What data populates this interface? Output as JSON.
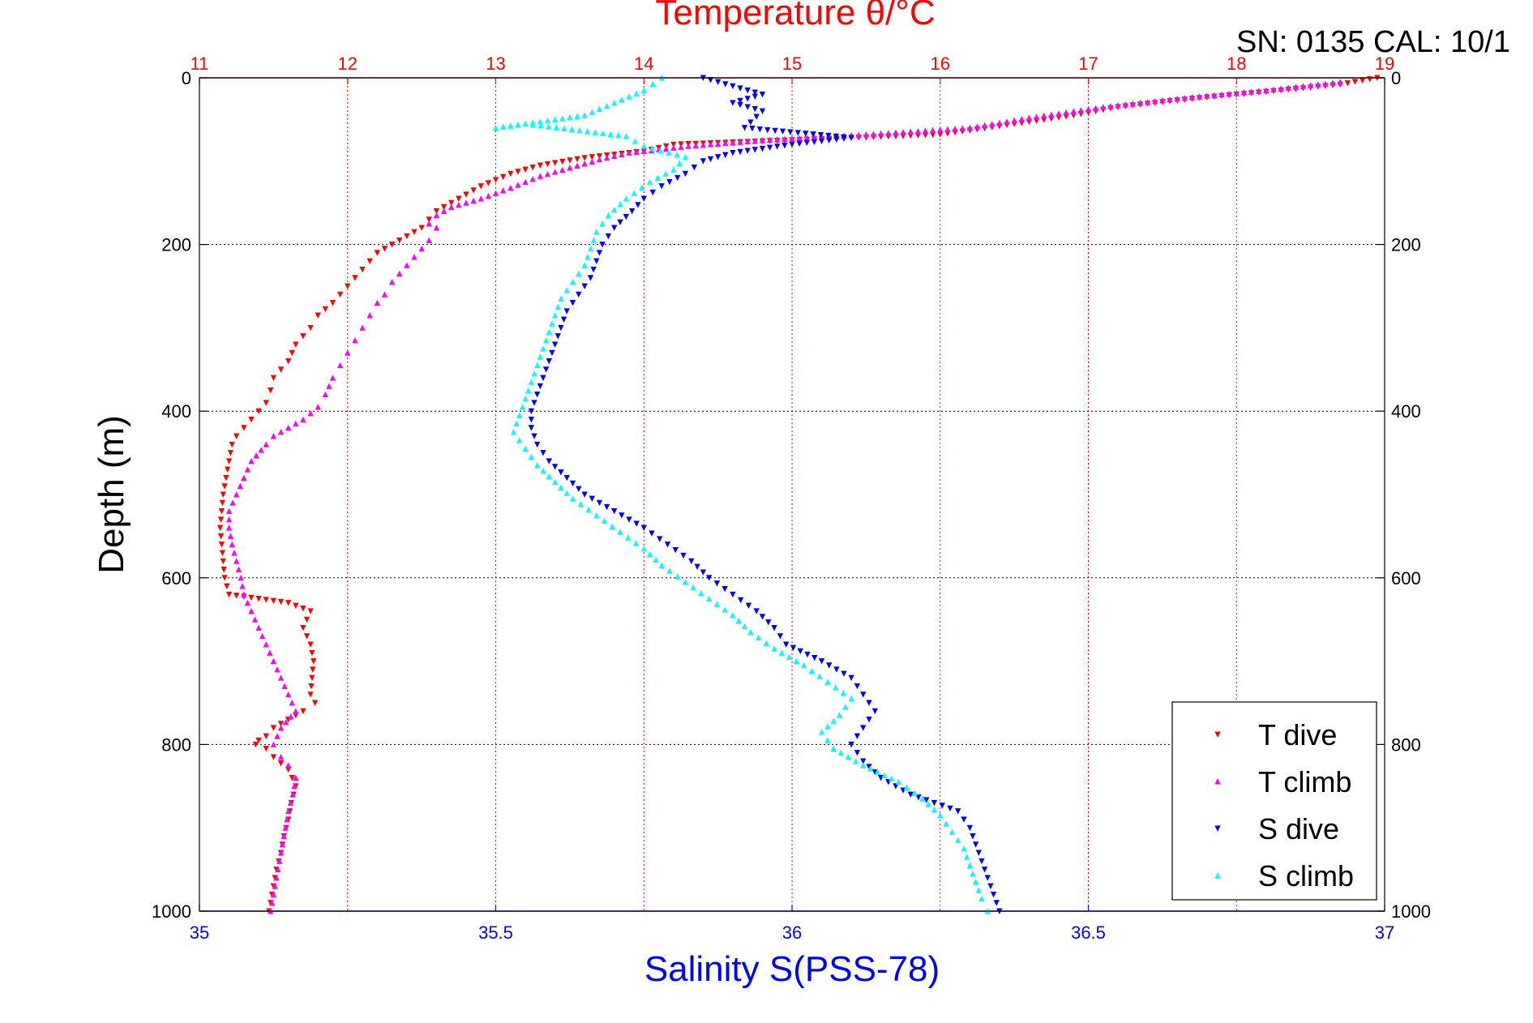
{
  "serial_text": "SN: 0135  CAL: 10/1",
  "chart_data": {
    "type": "scatter",
    "title": "Temperature θ/°C",
    "xlabel": "Salinity S(PSS-78)",
    "ylabel": "Depth (m)",
    "x_top_label": "Temperature θ/°C",
    "temperature_axis": {
      "range": [
        11,
        19
      ],
      "ticks": [
        "11",
        "12",
        "13",
        "14",
        "15",
        "16",
        "17",
        "18",
        "19"
      ],
      "color": "#ff0000"
    },
    "salinity_axis": {
      "range": [
        35,
        37
      ],
      "ticks": [
        "35",
        "35.5",
        "36",
        "36.5",
        "37"
      ],
      "color": "#0000ff"
    },
    "depth_axis": {
      "range": [
        0,
        1000
      ],
      "reversed": true,
      "ticks": [
        "0",
        "200",
        "400",
        "600",
        "800",
        "1000"
      ]
    },
    "grid": true,
    "legend": "bottom-right",
    "series": [
      {
        "name": "T dive",
        "axis": "temperature",
        "color": "#ff0000",
        "marker": "triangle-down",
        "points": [
          [
            18.95,
            0
          ],
          [
            18.7,
            8
          ],
          [
            18.3,
            15
          ],
          [
            17.7,
            25
          ],
          [
            17.2,
            35
          ],
          [
            16.9,
            45
          ],
          [
            16.4,
            58
          ],
          [
            16.0,
            68
          ],
          [
            15.4,
            72
          ],
          [
            14.8,
            76
          ],
          [
            14.2,
            80
          ],
          [
            14.0,
            88
          ],
          [
            13.6,
            96
          ],
          [
            13.3,
            105
          ],
          [
            13.1,
            115
          ],
          [
            12.9,
            130
          ],
          [
            12.8,
            140
          ],
          [
            12.7,
            150
          ],
          [
            12.6,
            160
          ],
          [
            12.55,
            170
          ],
          [
            12.5,
            180
          ],
          [
            12.4,
            190
          ],
          [
            12.3,
            200
          ],
          [
            12.2,
            210
          ],
          [
            12.15,
            220
          ],
          [
            12.1,
            230
          ],
          [
            12.05,
            240
          ],
          [
            12.0,
            250
          ],
          [
            11.95,
            260
          ],
          [
            11.9,
            270
          ],
          [
            11.8,
            285
          ],
          [
            11.75,
            300
          ],
          [
            11.7,
            310
          ],
          [
            11.65,
            320
          ],
          [
            11.6,
            340
          ],
          [
            11.55,
            350
          ],
          [
            11.5,
            360
          ],
          [
            11.48,
            375
          ],
          [
            11.45,
            390
          ],
          [
            11.4,
            400
          ],
          [
            11.35,
            410
          ],
          [
            11.3,
            420
          ],
          [
            11.25,
            430
          ],
          [
            11.22,
            440
          ],
          [
            11.2,
            460
          ],
          [
            11.18,
            480
          ],
          [
            11.16,
            500
          ],
          [
            11.15,
            520
          ],
          [
            11.14,
            540
          ],
          [
            11.15,
            560
          ],
          [
            11.16,
            580
          ],
          [
            11.17,
            600
          ],
          [
            11.2,
            620
          ],
          [
            11.6,
            630
          ],
          [
            11.75,
            640
          ],
          [
            11.7,
            660
          ],
          [
            11.75,
            680
          ],
          [
            11.77,
            700
          ],
          [
            11.76,
            720
          ],
          [
            11.75,
            740
          ],
          [
            11.78,
            750
          ],
          [
            11.7,
            760
          ],
          [
            11.6,
            770
          ],
          [
            11.5,
            780
          ],
          [
            11.45,
            790
          ],
          [
            11.4,
            795
          ],
          [
            11.38,
            800
          ],
          [
            11.45,
            805
          ],
          [
            11.5,
            815
          ],
          [
            11.6,
            830
          ],
          [
            11.65,
            850
          ],
          [
            11.62,
            870
          ],
          [
            11.6,
            890
          ],
          [
            11.57,
            910
          ],
          [
            11.55,
            930
          ],
          [
            11.52,
            950
          ],
          [
            11.5,
            970
          ],
          [
            11.48,
            990
          ],
          [
            11.47,
            1000
          ]
        ]
      },
      {
        "name": "T climb",
        "axis": "temperature",
        "color": "#ff00ff",
        "marker": "triangle-up",
        "points": [
          [
            18.7,
            5
          ],
          [
            18.2,
            15
          ],
          [
            17.6,
            25
          ],
          [
            17.1,
            35
          ],
          [
            16.6,
            48
          ],
          [
            16.2,
            60
          ],
          [
            15.5,
            68
          ],
          [
            14.8,
            75
          ],
          [
            14.3,
            82
          ],
          [
            13.9,
            90
          ],
          [
            13.7,
            98
          ],
          [
            13.5,
            108
          ],
          [
            13.3,
            118
          ],
          [
            13.1,
            132
          ],
          [
            12.9,
            145
          ],
          [
            12.7,
            155
          ],
          [
            12.6,
            165
          ],
          [
            12.55,
            175
          ],
          [
            12.6,
            180
          ],
          [
            12.55,
            195
          ],
          [
            12.5,
            205
          ],
          [
            12.45,
            215
          ],
          [
            12.4,
            225
          ],
          [
            12.35,
            235
          ],
          [
            12.3,
            245
          ],
          [
            12.25,
            260
          ],
          [
            12.2,
            270
          ],
          [
            12.15,
            285
          ],
          [
            12.1,
            300
          ],
          [
            12.05,
            315
          ],
          [
            12.0,
            330
          ],
          [
            11.95,
            345
          ],
          [
            11.9,
            360
          ],
          [
            11.85,
            380
          ],
          [
            11.8,
            395
          ],
          [
            11.7,
            410
          ],
          [
            11.6,
            420
          ],
          [
            11.5,
            430
          ],
          [
            11.45,
            440
          ],
          [
            11.35,
            460
          ],
          [
            11.3,
            480
          ],
          [
            11.25,
            500
          ],
          [
            11.2,
            520
          ],
          [
            11.2,
            540
          ],
          [
            11.22,
            560
          ],
          [
            11.25,
            580
          ],
          [
            11.28,
            600
          ],
          [
            11.3,
            620
          ],
          [
            11.35,
            640
          ],
          [
            11.4,
            660
          ],
          [
            11.45,
            680
          ],
          [
            11.5,
            700
          ],
          [
            11.55,
            720
          ],
          [
            11.6,
            740
          ],
          [
            11.65,
            760
          ],
          [
            11.55,
            780
          ],
          [
            11.5,
            800
          ],
          [
            11.55,
            815
          ],
          [
            11.6,
            825
          ],
          [
            11.65,
            840
          ],
          [
            11.63,
            860
          ],
          [
            11.6,
            880
          ],
          [
            11.58,
            900
          ],
          [
            11.56,
            920
          ],
          [
            11.54,
            940
          ],
          [
            11.52,
            960
          ],
          [
            11.5,
            980
          ],
          [
            11.48,
            1000
          ]
        ]
      },
      {
        "name": "S dive",
        "axis": "salinity",
        "color": "#0000ff",
        "marker": "triangle-down",
        "points": [
          [
            35.85,
            0
          ],
          [
            35.9,
            10
          ],
          [
            35.95,
            20
          ],
          [
            35.9,
            30
          ],
          [
            35.95,
            40
          ],
          [
            35.92,
            60
          ],
          [
            36.1,
            72
          ],
          [
            36.0,
            80
          ],
          [
            35.9,
            90
          ],
          [
            35.85,
            100
          ],
          [
            35.82,
            115
          ],
          [
            35.78,
            130
          ],
          [
            35.75,
            145
          ],
          [
            35.73,
            160
          ],
          [
            35.7,
            180
          ],
          [
            35.68,
            200
          ],
          [
            35.67,
            220
          ],
          [
            35.66,
            240
          ],
          [
            35.64,
            260
          ],
          [
            35.62,
            280
          ],
          [
            35.61,
            300
          ],
          [
            35.6,
            320
          ],
          [
            35.59,
            340
          ],
          [
            35.58,
            360
          ],
          [
            35.57,
            380
          ],
          [
            35.56,
            400
          ],
          [
            35.56,
            420
          ],
          [
            35.57,
            440
          ],
          [
            35.59,
            460
          ],
          [
            35.62,
            480
          ],
          [
            35.65,
            500
          ],
          [
            35.7,
            520
          ],
          [
            35.75,
            540
          ],
          [
            35.79,
            560
          ],
          [
            35.83,
            580
          ],
          [
            35.86,
            600
          ],
          [
            35.9,
            620
          ],
          [
            35.94,
            640
          ],
          [
            35.97,
            660
          ],
          [
            35.99,
            680
          ],
          [
            36.05,
            700
          ],
          [
            36.1,
            720
          ],
          [
            36.12,
            740
          ],
          [
            36.14,
            760
          ],
          [
            36.12,
            780
          ],
          [
            36.1,
            800
          ],
          [
            36.12,
            820
          ],
          [
            36.15,
            840
          ],
          [
            36.2,
            860
          ],
          [
            36.28,
            880
          ],
          [
            36.3,
            900
          ],
          [
            36.31,
            920
          ],
          [
            36.32,
            940
          ],
          [
            36.33,
            960
          ],
          [
            36.34,
            980
          ],
          [
            36.35,
            1000
          ]
        ]
      },
      {
        "name": "S climb",
        "axis": "salinity",
        "color": "#00ffff",
        "marker": "triangle-up",
        "points": [
          [
            35.78,
            0
          ],
          [
            35.75,
            15
          ],
          [
            35.7,
            30
          ],
          [
            35.65,
            45
          ],
          [
            35.5,
            60
          ],
          [
            35.55,
            55
          ],
          [
            35.72,
            70
          ],
          [
            35.75,
            82
          ],
          [
            35.82,
            95
          ],
          [
            35.8,
            110
          ],
          [
            35.76,
            125
          ],
          [
            35.72,
            145
          ],
          [
            35.69,
            165
          ],
          [
            35.67,
            185
          ],
          [
            35.66,
            205
          ],
          [
            35.65,
            225
          ],
          [
            35.63,
            245
          ],
          [
            35.61,
            265
          ],
          [
            35.6,
            285
          ],
          [
            35.59,
            305
          ],
          [
            35.58,
            325
          ],
          [
            35.57,
            345
          ],
          [
            35.56,
            365
          ],
          [
            35.55,
            385
          ],
          [
            35.54,
            405
          ],
          [
            35.53,
            425
          ],
          [
            35.55,
            445
          ],
          [
            35.57,
            465
          ],
          [
            35.6,
            485
          ],
          [
            35.63,
            505
          ],
          [
            35.67,
            525
          ],
          [
            35.71,
            545
          ],
          [
            35.75,
            565
          ],
          [
            35.78,
            585
          ],
          [
            35.82,
            605
          ],
          [
            35.86,
            625
          ],
          [
            35.9,
            645
          ],
          [
            35.93,
            665
          ],
          [
            35.97,
            685
          ],
          [
            36.02,
            705
          ],
          [
            36.06,
            725
          ],
          [
            36.1,
            745
          ],
          [
            36.08,
            765
          ],
          [
            36.05,
            785
          ],
          [
            36.07,
            805
          ],
          [
            36.12,
            825
          ],
          [
            36.18,
            845
          ],
          [
            36.22,
            865
          ],
          [
            36.25,
            885
          ],
          [
            36.27,
            905
          ],
          [
            36.29,
            925
          ],
          [
            36.3,
            945
          ],
          [
            36.31,
            965
          ],
          [
            36.32,
            985
          ],
          [
            36.33,
            1000
          ]
        ]
      }
    ]
  }
}
